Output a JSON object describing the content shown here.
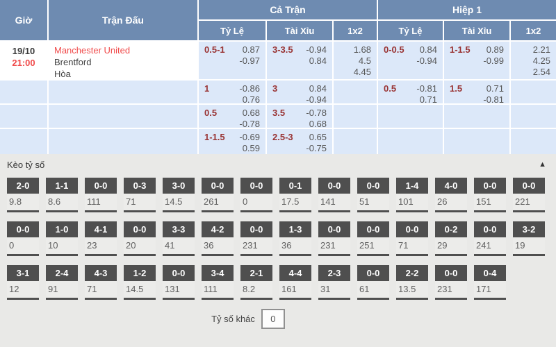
{
  "colors": {
    "header_blue": "#6e8bb1",
    "cell_light_blue": "#dce8f9",
    "handicap_red": "#993333",
    "team_time_red": "#f04b4b",
    "tile_dark_gray": "#4f4f4f",
    "section_gray": "#e9e9e7"
  },
  "odds_table": {
    "header": {
      "time": "Giờ",
      "match": "Trận Đấu",
      "full_time": "Cả Trận",
      "first_half": "Hiệp 1",
      "handicap": "Tỷ Lệ",
      "over_under": "Tài Xỉu",
      "one_x_two": "1x2"
    },
    "match": {
      "date": "19/10",
      "kickoff": "21:00",
      "home": "Manchester United",
      "away": "Brentford",
      "draw": "Hòa"
    },
    "rows": [
      {
        "ft_hc": {
          "line": "0.5-1",
          "o1": "0.87",
          "o2": "-0.97"
        },
        "ft_ou": {
          "line": "3-3.5",
          "o1": "-0.94",
          "o2": "0.84"
        },
        "ft_1x2": {
          "o1": "1.68",
          "o2": "4.5",
          "o3": "4.45"
        },
        "h1_hc": {
          "line": "0-0.5",
          "o1": "0.84",
          "o2": "-0.94"
        },
        "h1_ou": {
          "line": "1-1.5",
          "o1": "0.89",
          "o2": "-0.99"
        },
        "h1_1x2": {
          "o1": "2.21",
          "o2": "4.25",
          "o3": "2.54"
        }
      },
      {
        "ft_hc": {
          "line": "1",
          "o1": "-0.86",
          "o2": "0.76"
        },
        "ft_ou": {
          "line": "3",
          "o1": "0.84",
          "o2": "-0.94"
        },
        "h1_hc": {
          "line": "0.5",
          "o1": "-0.81",
          "o2": "0.71"
        },
        "h1_ou": {
          "line": "1.5",
          "o1": "0.71",
          "o2": "-0.81"
        }
      },
      {
        "ft_hc": {
          "line": "0.5",
          "o1": "0.68",
          "o2": "-0.78"
        },
        "ft_ou": {
          "line": "3.5",
          "o1": "-0.78",
          "o2": "0.68"
        }
      },
      {
        "ft_hc": {
          "line": "1-1.5",
          "o1": "-0.69",
          "o2": "0.59"
        },
        "ft_ou": {
          "line": "2.5-3",
          "o1": "0.65",
          "o2": "-0.75"
        }
      }
    ]
  },
  "correct_score": {
    "title": "Kèo tỷ số",
    "collapse_icon": "▲",
    "rows": [
      [
        {
          "score": "2-0",
          "odds": "9.8"
        },
        {
          "score": "1-1",
          "odds": "8.6"
        },
        {
          "score": "0-0",
          "odds": "111"
        },
        {
          "score": "0-3",
          "odds": "71"
        },
        {
          "score": "3-0",
          "odds": "14.5"
        },
        {
          "score": "0-0",
          "odds": "261"
        },
        {
          "score": "0-0",
          "odds": "0"
        },
        {
          "score": "0-1",
          "odds": "17.5"
        },
        {
          "score": "0-0",
          "odds": "141"
        },
        {
          "score": "0-0",
          "odds": "51"
        },
        {
          "score": "1-4",
          "odds": "101"
        },
        {
          "score": "4-0",
          "odds": "26"
        },
        {
          "score": "0-0",
          "odds": "151"
        },
        {
          "score": "0-0",
          "odds": "221"
        }
      ],
      [
        {
          "score": "0-0",
          "odds": "0"
        },
        {
          "score": "1-0",
          "odds": "10"
        },
        {
          "score": "4-1",
          "odds": "23"
        },
        {
          "score": "0-0",
          "odds": "20"
        },
        {
          "score": "3-3",
          "odds": "41"
        },
        {
          "score": "4-2",
          "odds": "36"
        },
        {
          "score": "0-0",
          "odds": "231"
        },
        {
          "score": "1-3",
          "odds": "36"
        },
        {
          "score": "0-0",
          "odds": "231"
        },
        {
          "score": "0-0",
          "odds": "251"
        },
        {
          "score": "0-0",
          "odds": "71"
        },
        {
          "score": "0-2",
          "odds": "29"
        },
        {
          "score": "0-0",
          "odds": "241"
        },
        {
          "score": "3-2",
          "odds": "19"
        }
      ],
      [
        {
          "score": "3-1",
          "odds": "12"
        },
        {
          "score": "2-4",
          "odds": "91"
        },
        {
          "score": "4-3",
          "odds": "71"
        },
        {
          "score": "1-2",
          "odds": "14.5"
        },
        {
          "score": "0-0",
          "odds": "131"
        },
        {
          "score": "3-4",
          "odds": "111"
        },
        {
          "score": "2-1",
          "odds": "8.2"
        },
        {
          "score": "4-4",
          "odds": "161"
        },
        {
          "score": "2-3",
          "odds": "31"
        },
        {
          "score": "0-0",
          "odds": "61"
        },
        {
          "score": "2-2",
          "odds": "13.5"
        },
        {
          "score": "0-0",
          "odds": "231"
        },
        {
          "score": "0-4",
          "odds": "171"
        }
      ]
    ],
    "other": {
      "label": "Tỷ số khác",
      "odds": "0"
    }
  }
}
